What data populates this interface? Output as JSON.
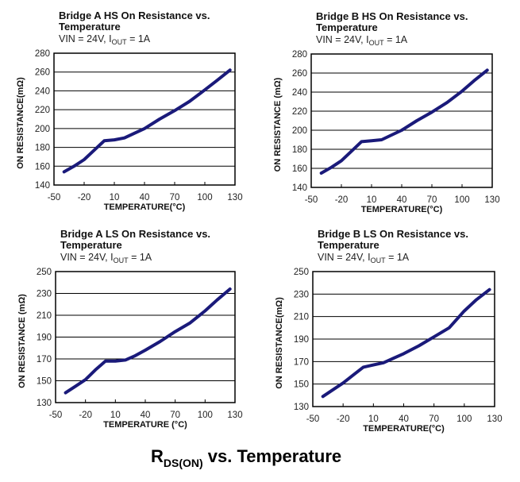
{
  "figure_caption": {
    "main": "R",
    "sub": "DS(ON)",
    "rest": " vs. Temperature"
  },
  "chart_data": [
    {
      "type": "line",
      "title_line1": "Bridge A HS On Resistance vs.",
      "title_line2": "Temperature",
      "subtitle": {
        "pre": "VIN = 24V, I",
        "sub": "OUT",
        "post": " = 1A"
      },
      "xlabel": "TEMPERATURE(°C)",
      "ylabel": "ON RESISTANCE(mΩ)",
      "xlim": [
        -50,
        130
      ],
      "xticks": [
        -50,
        -20,
        10,
        40,
        70,
        100,
        130
      ],
      "ylim": [
        140,
        280
      ],
      "yticks": [
        140,
        160,
        180,
        200,
        220,
        240,
        260,
        280
      ],
      "grid": "horizontal",
      "line_color": "#1a1a7a",
      "x": [
        -40,
        -30,
        -20,
        -10,
        0,
        10,
        20,
        30,
        40,
        55,
        70,
        85,
        100,
        112,
        125
      ],
      "y": [
        154,
        160,
        167,
        177,
        187,
        188,
        190,
        195,
        200,
        210,
        219,
        229,
        241,
        251,
        262
      ]
    },
    {
      "type": "line",
      "title_line1": "Bridge B HS On Resistance vs.",
      "title_line2": "Temperature",
      "subtitle": {
        "pre": "VIN = 24V, I",
        "sub": "OUT",
        "post": " = 1A"
      },
      "xlabel": "TEMPERATURE(°C)",
      "ylabel": "ON RESISTANCE (mΩ)",
      "xlim": [
        -50,
        130
      ],
      "xticks": [
        -50,
        -20,
        10,
        40,
        70,
        100,
        130
      ],
      "ylim": [
        140,
        280
      ],
      "yticks": [
        140,
        160,
        180,
        200,
        220,
        240,
        260,
        280
      ],
      "grid": "horizontal",
      "line_color": "#1a1a7a",
      "x": [
        -40,
        -30,
        -20,
        -10,
        0,
        10,
        20,
        30,
        40,
        55,
        70,
        85,
        100,
        112,
        125
      ],
      "y": [
        155,
        161,
        168,
        178,
        188,
        189,
        190,
        195,
        200,
        210,
        219,
        229,
        241,
        252,
        263
      ]
    },
    {
      "type": "line",
      "title_line1": "Bridge A LS On Resistance vs.",
      "title_line2": "Temperature",
      "subtitle": {
        "pre": "VIN = 24V, I",
        "sub": "OUT",
        "post": " = 1A"
      },
      "xlabel": "TEMPERATURE (°C)",
      "ylabel": "ON RESISTANCE (mΩ)",
      "xlim": [
        -50,
        130
      ],
      "xticks": [
        -50,
        -20,
        10,
        40,
        70,
        100,
        130
      ],
      "ylim": [
        130,
        250
      ],
      "yticks": [
        130,
        150,
        170,
        190,
        210,
        230,
        250
      ],
      "grid": "horizontal",
      "line_color": "#1a1a7a",
      "x": [
        -40,
        -30,
        -20,
        -10,
        0,
        10,
        20,
        30,
        40,
        55,
        70,
        85,
        100,
        112,
        125
      ],
      "y": [
        139,
        145,
        151,
        160,
        168,
        168,
        169,
        173,
        178,
        186,
        195,
        203,
        214,
        224,
        234
      ]
    },
    {
      "type": "line",
      "title_line1": "Bridge B LS On Resistance vs.",
      "title_line2": "Temperature",
      "subtitle": {
        "pre": "VIN = 24V, I",
        "sub": "OUT",
        "post": " = 1A"
      },
      "xlabel": "TEMPERATURE(°C)",
      "ylabel": "ON RESISTANCE(mΩ)",
      "xlim": [
        -50,
        130
      ],
      "xticks": [
        -50,
        -20,
        10,
        40,
        70,
        100,
        130
      ],
      "ylim": [
        130,
        250
      ],
      "yticks": [
        130,
        150,
        170,
        190,
        210,
        230,
        250
      ],
      "grid": "horizontal",
      "line_color": "#1a1a7a",
      "x": [
        -40,
        -30,
        -20,
        -10,
        0,
        10,
        20,
        30,
        40,
        55,
        70,
        85,
        100,
        112,
        125
      ],
      "y": [
        139,
        145,
        151,
        158,
        165,
        167,
        169,
        173,
        177,
        184,
        192,
        200,
        215,
        225,
        234
      ]
    }
  ]
}
